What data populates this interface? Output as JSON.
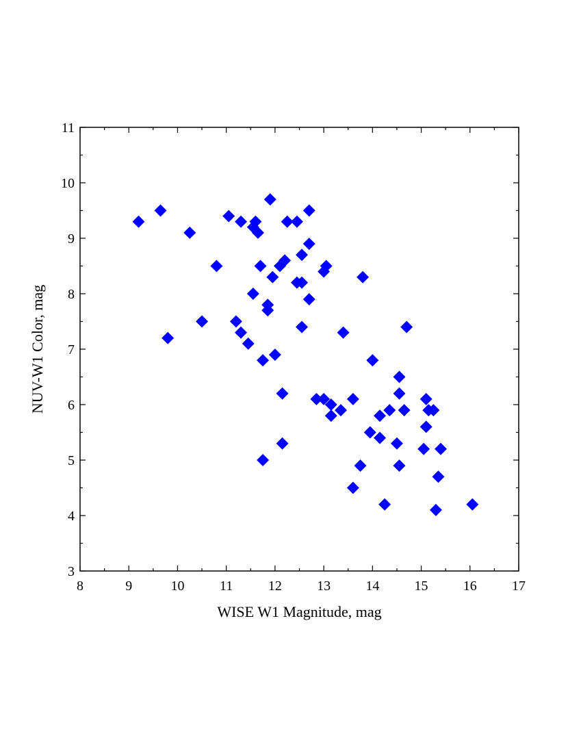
{
  "chart_data": {
    "type": "scatter",
    "xlabel": "WISE W1 Magnitude, mag",
    "ylabel": "NUV-W1 Color, mag",
    "xlim": [
      8,
      17
    ],
    "ylim": [
      3,
      11
    ],
    "x_ticks": [
      "8",
      "9",
      "10",
      "11",
      "12",
      "13",
      "14",
      "15",
      "16",
      "17"
    ],
    "y_ticks": [
      "3",
      "4",
      "5",
      "6",
      "7",
      "8",
      "9",
      "10",
      "11"
    ],
    "grid": false,
    "marker": "diamond",
    "marker_color": "#0000ff",
    "points": [
      [
        9.2,
        9.3
      ],
      [
        9.65,
        9.5
      ],
      [
        9.8,
        7.2
      ],
      [
        10.25,
        9.1
      ],
      [
        10.5,
        7.5
      ],
      [
        10.8,
        8.5
      ],
      [
        11.05,
        9.4
      ],
      [
        11.3,
        9.3
      ],
      [
        11.55,
        9.2
      ],
      [
        11.6,
        9.3
      ],
      [
        11.65,
        9.1
      ],
      [
        11.2,
        7.5
      ],
      [
        11.3,
        7.3
      ],
      [
        11.45,
        7.1
      ],
      [
        11.7,
        8.5
      ],
      [
        11.55,
        8.0
      ],
      [
        11.75,
        6.8
      ],
      [
        11.85,
        7.7
      ],
      [
        11.85,
        7.8
      ],
      [
        11.9,
        9.7
      ],
      [
        11.95,
        8.3
      ],
      [
        12.0,
        6.9
      ],
      [
        12.1,
        8.5
      ],
      [
        12.2,
        8.6
      ],
      [
        12.25,
        9.3
      ],
      [
        12.45,
        9.3
      ],
      [
        12.45,
        8.2
      ],
      [
        12.55,
        8.2
      ],
      [
        12.55,
        8.7
      ],
      [
        12.55,
        7.4
      ],
      [
        12.7,
        8.9
      ],
      [
        12.7,
        9.5
      ],
      [
        12.7,
        7.9
      ],
      [
        12.15,
        6.2
      ],
      [
        11.75,
        5.0
      ],
      [
        12.15,
        5.3
      ],
      [
        12.85,
        6.1
      ],
      [
        13.0,
        6.1
      ],
      [
        13.0,
        8.4
      ],
      [
        13.05,
        8.5
      ],
      [
        13.15,
        6.0
      ],
      [
        13.15,
        5.8
      ],
      [
        13.35,
        5.9
      ],
      [
        13.4,
        7.3
      ],
      [
        13.6,
        6.1
      ],
      [
        13.6,
        4.5
      ],
      [
        13.75,
        4.9
      ],
      [
        13.8,
        8.3
      ],
      [
        13.95,
        5.5
      ],
      [
        14.0,
        6.8
      ],
      [
        14.15,
        5.8
      ],
      [
        14.15,
        5.4
      ],
      [
        14.25,
        4.2
      ],
      [
        14.35,
        5.9
      ],
      [
        14.5,
        5.3
      ],
      [
        14.55,
        6.5
      ],
      [
        14.55,
        6.2
      ],
      [
        14.55,
        4.9
      ],
      [
        14.65,
        5.9
      ],
      [
        14.7,
        7.4
      ],
      [
        15.05,
        5.2
      ],
      [
        15.1,
        6.1
      ],
      [
        15.1,
        5.6
      ],
      [
        15.15,
        5.9
      ],
      [
        15.25,
        5.9
      ],
      [
        15.3,
        4.1
      ],
      [
        15.35,
        4.7
      ],
      [
        15.4,
        5.2
      ],
      [
        16.05,
        4.2
      ]
    ]
  }
}
